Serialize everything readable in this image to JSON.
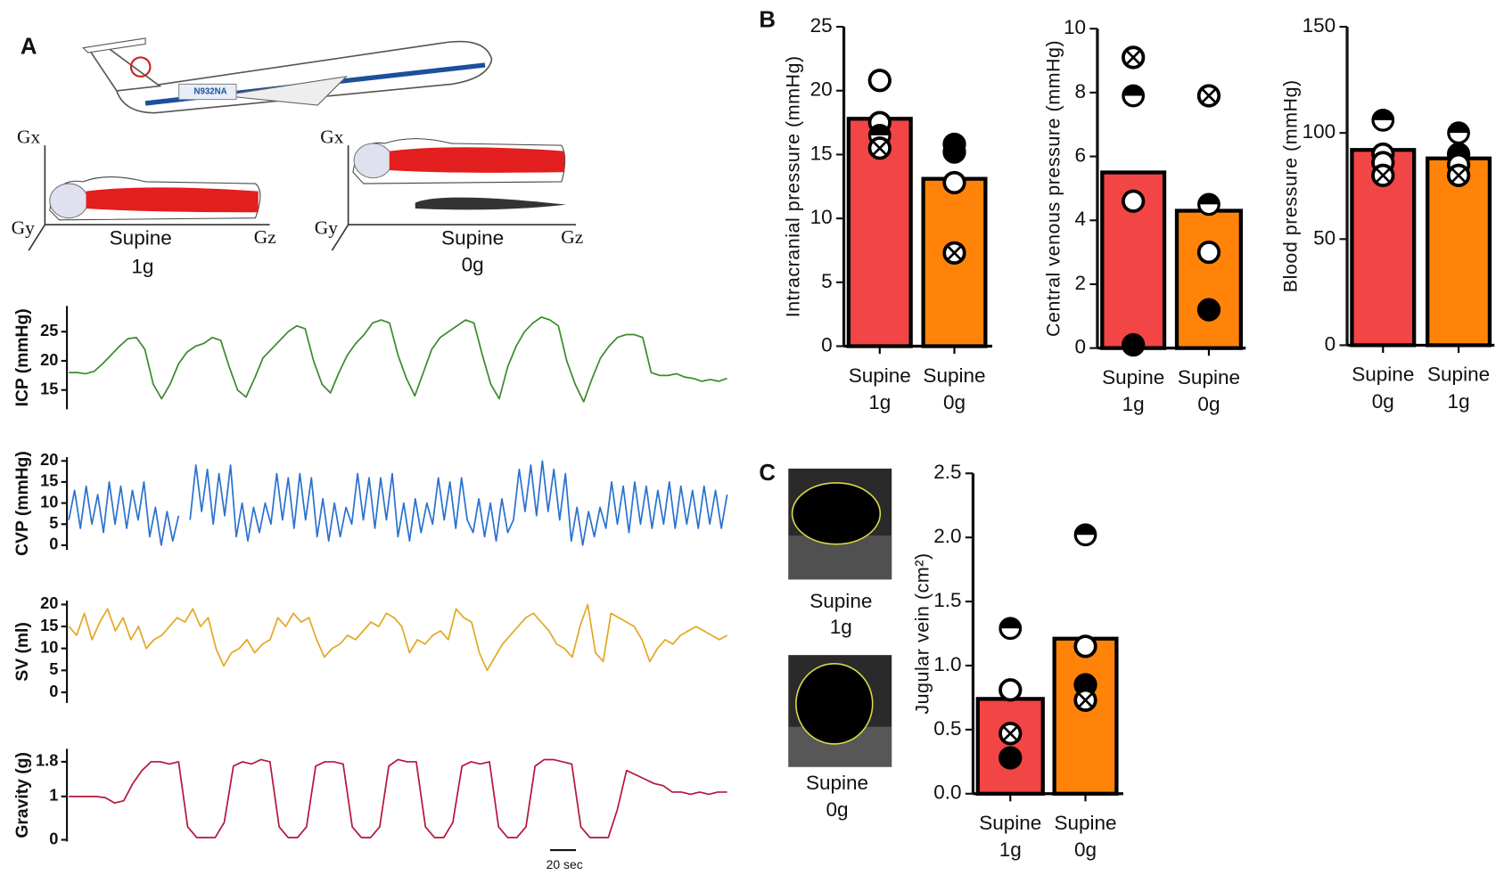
{
  "figure": {
    "panels": [
      "A",
      "B",
      "C"
    ],
    "diagram": {
      "plane_label": "N932NA",
      "axes": [
        "Gx",
        "Gy",
        "Gz"
      ],
      "conditions": [
        [
          "Supine",
          "1g"
        ],
        [
          "Supine",
          "0g"
        ]
      ]
    },
    "scale_bar": "20 sec",
    "ultrasound": [
      [
        "Supine",
        "1g"
      ],
      [
        "Supine",
        "0g"
      ]
    ]
  },
  "chart_data": [
    {
      "type": "line",
      "ylabel": "ICP (mmHg)",
      "color": "#3b8a2e",
      "ylim": [
        11.7,
        29.4
      ],
      "yticks": [
        15,
        20,
        25
      ],
      "values": [
        18,
        18,
        17.8,
        18.2,
        19.5,
        21,
        22.5,
        23.8,
        24,
        22,
        16,
        13.5,
        16,
        19.5,
        21.5,
        22.5,
        23,
        24,
        23.5,
        19,
        15,
        13.8,
        17,
        20.5,
        22,
        23.5,
        25,
        26,
        25.5,
        20,
        16,
        14.5,
        18,
        21,
        23,
        24.5,
        26.5,
        27,
        26.5,
        21,
        17,
        14,
        18,
        22,
        24,
        25,
        26,
        27,
        26.5,
        21,
        16,
        13.5,
        19,
        22.5,
        25,
        26.5,
        27.5,
        27,
        26,
        20,
        16,
        13,
        17,
        20.5,
        22.5,
        24,
        24.5,
        24.5,
        24,
        18,
        17.5,
        17.5,
        17.8,
        17.2,
        17,
        16.5,
        16.8,
        16.5,
        17
      ]
    },
    {
      "type": "line",
      "ylabel": "CVP (mmHg)",
      "color": "#2a72d0",
      "ylim": [
        -1.1,
        20.9
      ],
      "yticks": [
        0,
        5,
        10,
        15,
        20
      ],
      "values": [
        6,
        13,
        4,
        14,
        5,
        12,
        3,
        15,
        5,
        14,
        4,
        13,
        6,
        15,
        2,
        9,
        0,
        8,
        1,
        7,
        null,
        6,
        19,
        8,
        18,
        5,
        17,
        7,
        19,
        2,
        10,
        1,
        9,
        3,
        10,
        5,
        17,
        6,
        16,
        4,
        17,
        6,
        16,
        2,
        11,
        1,
        10,
        2,
        9,
        5,
        17,
        6,
        16,
        4,
        16,
        6,
        17,
        2,
        10,
        1,
        11,
        3,
        10,
        5,
        16,
        6,
        15,
        4,
        16,
        6,
        3,
        11,
        2,
        10,
        1,
        11,
        3,
        6,
        18,
        8,
        19,
        7,
        20,
        8,
        18,
        6,
        17,
        1,
        9,
        0,
        8,
        2,
        9,
        4,
        15,
        5,
        14,
        3,
        15,
        5,
        14,
        4,
        13,
        5,
        15,
        4,
        14,
        5,
        13,
        4,
        14,
        5,
        13,
        4,
        12
      ]
    },
    {
      "type": "line",
      "ylabel": "SV (ml)",
      "color": "#e3a823",
      "ylim": [
        -2.4,
        20.9
      ],
      "yticks": [
        0,
        5,
        10,
        15,
        20
      ],
      "values": [
        15,
        13,
        18,
        12,
        16,
        19,
        14,
        17,
        12,
        15,
        10,
        12,
        13,
        15,
        17,
        16,
        19,
        15,
        17,
        10,
        6,
        9,
        10,
        12,
        9,
        11,
        12,
        17,
        15,
        18,
        16,
        17,
        12,
        8,
        10,
        11,
        13,
        12,
        14,
        16,
        15,
        18,
        17,
        15,
        9,
        12,
        11,
        13,
        14,
        12,
        19,
        17,
        16,
        9,
        5,
        8,
        11,
        13,
        15,
        17,
        18,
        16,
        14,
        11,
        10,
        8,
        15,
        20,
        9,
        7,
        18,
        17,
        16,
        15,
        12,
        7,
        10,
        12,
        11,
        13,
        14,
        15,
        14,
        13,
        12,
        13
      ]
    },
    {
      "type": "line",
      "ylabel": "Gravity (g)",
      "color": "#b5163a",
      "ylim": [
        -0.04,
        2.1
      ],
      "yticks": [
        0,
        1,
        1.8
      ],
      "values": [
        1,
        1,
        1,
        1,
        0.97,
        0.85,
        0.9,
        1.3,
        1.6,
        1.8,
        1.8,
        1.75,
        1.8,
        0.3,
        0.05,
        0.05,
        0.05,
        0.4,
        1.7,
        1.8,
        1.75,
        1.85,
        1.8,
        0.3,
        0.05,
        0.05,
        0.3,
        1.7,
        1.8,
        1.8,
        1.75,
        0.3,
        0.05,
        0.05,
        0.3,
        1.7,
        1.85,
        1.8,
        1.8,
        0.3,
        0.05,
        0.05,
        0.4,
        1.7,
        1.8,
        1.75,
        1.8,
        0.3,
        0.05,
        0.05,
        0.3,
        1.7,
        1.85,
        1.85,
        1.8,
        1.75,
        0.3,
        0.05,
        0.05,
        0.05,
        0.7,
        1.6,
        1.5,
        1.4,
        1.3,
        1.25,
        1.1,
        1.1,
        1.05,
        1.1,
        1.05,
        1.1,
        1.1
      ]
    },
    {
      "type": "bar",
      "ylabel": "Intracranial pressure (mmHg)",
      "categories": [
        [
          "Supine",
          "1g"
        ],
        [
          "Supine",
          "0g"
        ]
      ],
      "colors": [
        "#f24545",
        "#ff8309"
      ],
      "values": [
        17.8,
        13.1
      ],
      "ylim": [
        0,
        25
      ],
      "yticks": [
        0,
        5,
        10,
        15,
        20,
        25
      ],
      "points": [
        [
          20.8,
          17.5,
          16.5,
          15.5
        ],
        [
          15.8,
          15.2,
          12.8,
          7.3
        ]
      ],
      "markers": [
        [
          "open",
          "open",
          "half",
          "cross"
        ],
        [
          "filled",
          "filled",
          "open",
          "cross"
        ]
      ]
    },
    {
      "type": "bar",
      "ylabel": "Central venous pressure (mmHg)",
      "categories": [
        [
          "Supine",
          "1g"
        ],
        [
          "Supine",
          "0g"
        ]
      ],
      "colors": [
        "#f24545",
        "#ff8309"
      ],
      "values": [
        5.5,
        4.3
      ],
      "ylim": [
        0,
        10
      ],
      "yticks": [
        0,
        2,
        4,
        6,
        8,
        10
      ],
      "points": [
        [
          9.1,
          7.9,
          4.6,
          0.1
        ],
        [
          7.9,
          4.5,
          3.0,
          1.2
        ]
      ],
      "markers": [
        [
          "cross",
          "half",
          "open",
          "filled"
        ],
        [
          "cross",
          "half",
          "open",
          "filled"
        ]
      ]
    },
    {
      "type": "bar",
      "ylabel": "Blood pressure (mmHg)",
      "categories": [
        [
          "Supine",
          "0g"
        ],
        [
          "Supine",
          "1g"
        ]
      ],
      "colors": [
        "#f24545",
        "#ff8309"
      ],
      "values": [
        92,
        88
      ],
      "ylim": [
        0,
        150
      ],
      "yticks": [
        0,
        50,
        100,
        150
      ],
      "points": [
        [
          106,
          90,
          86,
          80
        ],
        [
          100,
          90,
          85,
          80
        ]
      ],
      "markers": [
        [
          "half",
          "open",
          "open",
          "cross"
        ],
        [
          "half",
          "filled",
          "open",
          "cross"
        ]
      ]
    },
    {
      "type": "bar",
      "ylabel": "Jugular vein (cm²)",
      "categories": [
        [
          "Supine",
          "1g"
        ],
        [
          "Supine",
          "0g"
        ]
      ],
      "colors": [
        "#f24545",
        "#ff8309"
      ],
      "values": [
        0.74,
        1.21
      ],
      "ylim": [
        0,
        2.5
      ],
      "yticks": [
        {
          "value": 0,
          "label": "0.0"
        },
        0.5,
        {
          "value": 1,
          "label": "1.0"
        },
        1.5,
        {
          "value": 2,
          "label": "2.0"
        },
        2.5
      ],
      "points": [
        [
          1.29,
          0.81,
          0.47,
          0.28
        ],
        [
          2.02,
          1.15,
          0.85,
          0.73
        ]
      ],
      "markers": [
        [
          "half",
          "open",
          "cross",
          "filled"
        ],
        [
          "half",
          "open",
          "filled",
          "cross"
        ]
      ]
    }
  ]
}
